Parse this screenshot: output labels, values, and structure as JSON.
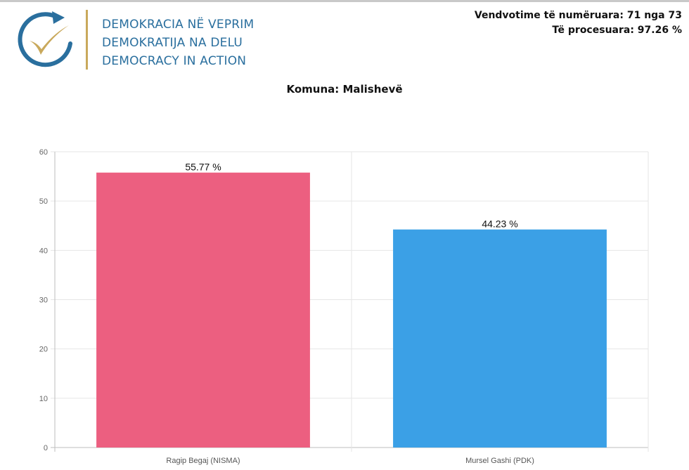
{
  "header": {
    "org_names": [
      "DEMOKRACIA NË VEPRIM",
      "DEMOKRATIJA NA DELU",
      "DEMOCRACY IN ACTION"
    ],
    "logo_icon": "check-circle-logo-icon",
    "polling_stations": "Vendvotime të numëruara: 71 nga 73",
    "processed": "Të procesuara: 97.26 %"
  },
  "colors": {
    "brand_blue": "#2a6f9e",
    "brand_gold": "#c9a95c",
    "bar_pink": "#ec5f80",
    "bar_blue": "#3ba0e6"
  },
  "chart_data": {
    "type": "bar",
    "title": "Komuna: Malishevë",
    "categories": [
      "Ragip Begaj (NISMA)",
      "Mursel Gashi (PDK)"
    ],
    "values": [
      55.77,
      44.23
    ],
    "value_labels": [
      "55.77 %",
      "44.23 %"
    ],
    "colors": [
      "#ec5f80",
      "#3ba0e6"
    ],
    "ylim": [
      0,
      60
    ],
    "yticks": [
      0,
      10,
      20,
      30,
      40,
      50,
      60
    ],
    "xlabel": "",
    "ylabel": "",
    "grid": true,
    "legend": "none"
  }
}
